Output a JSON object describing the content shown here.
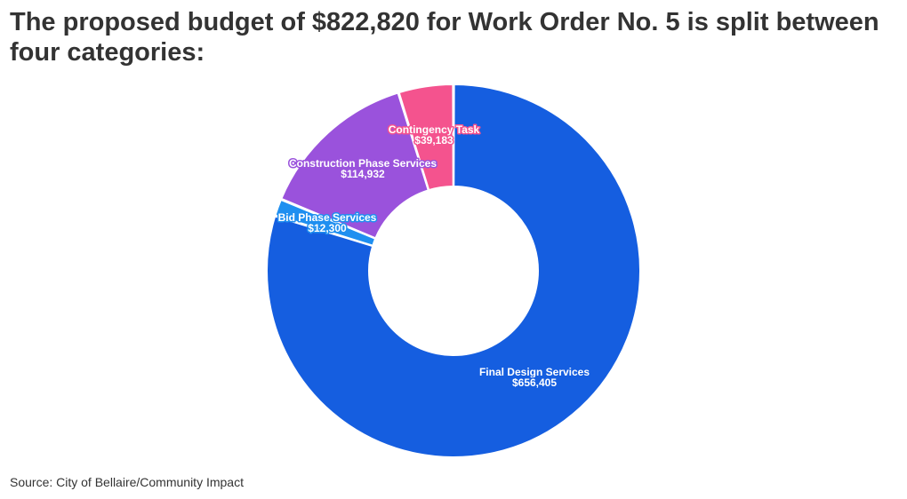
{
  "title": "The proposed budget of $822,820 for Work Order No. 5 is split between four categories:",
  "source": "Source: City of Bellaire/Community Impact",
  "chart_data": {
    "type": "pie",
    "style": "donut",
    "categories": [
      "Final Design Services",
      "Bid Phase Services",
      "Construction Phase Services",
      "Contingency Task"
    ],
    "values": [
      656405,
      12300,
      114932,
      39183
    ],
    "value_labels": [
      "$656,405",
      "$12,300",
      "$114,932",
      "$39,183"
    ],
    "colors": [
      "#155ee0",
      "#1f8ff0",
      "#9a52dc",
      "#f4538e"
    ],
    "total": 822820,
    "start": "12 o'clock",
    "direction": "clockwise",
    "legend": "none"
  }
}
